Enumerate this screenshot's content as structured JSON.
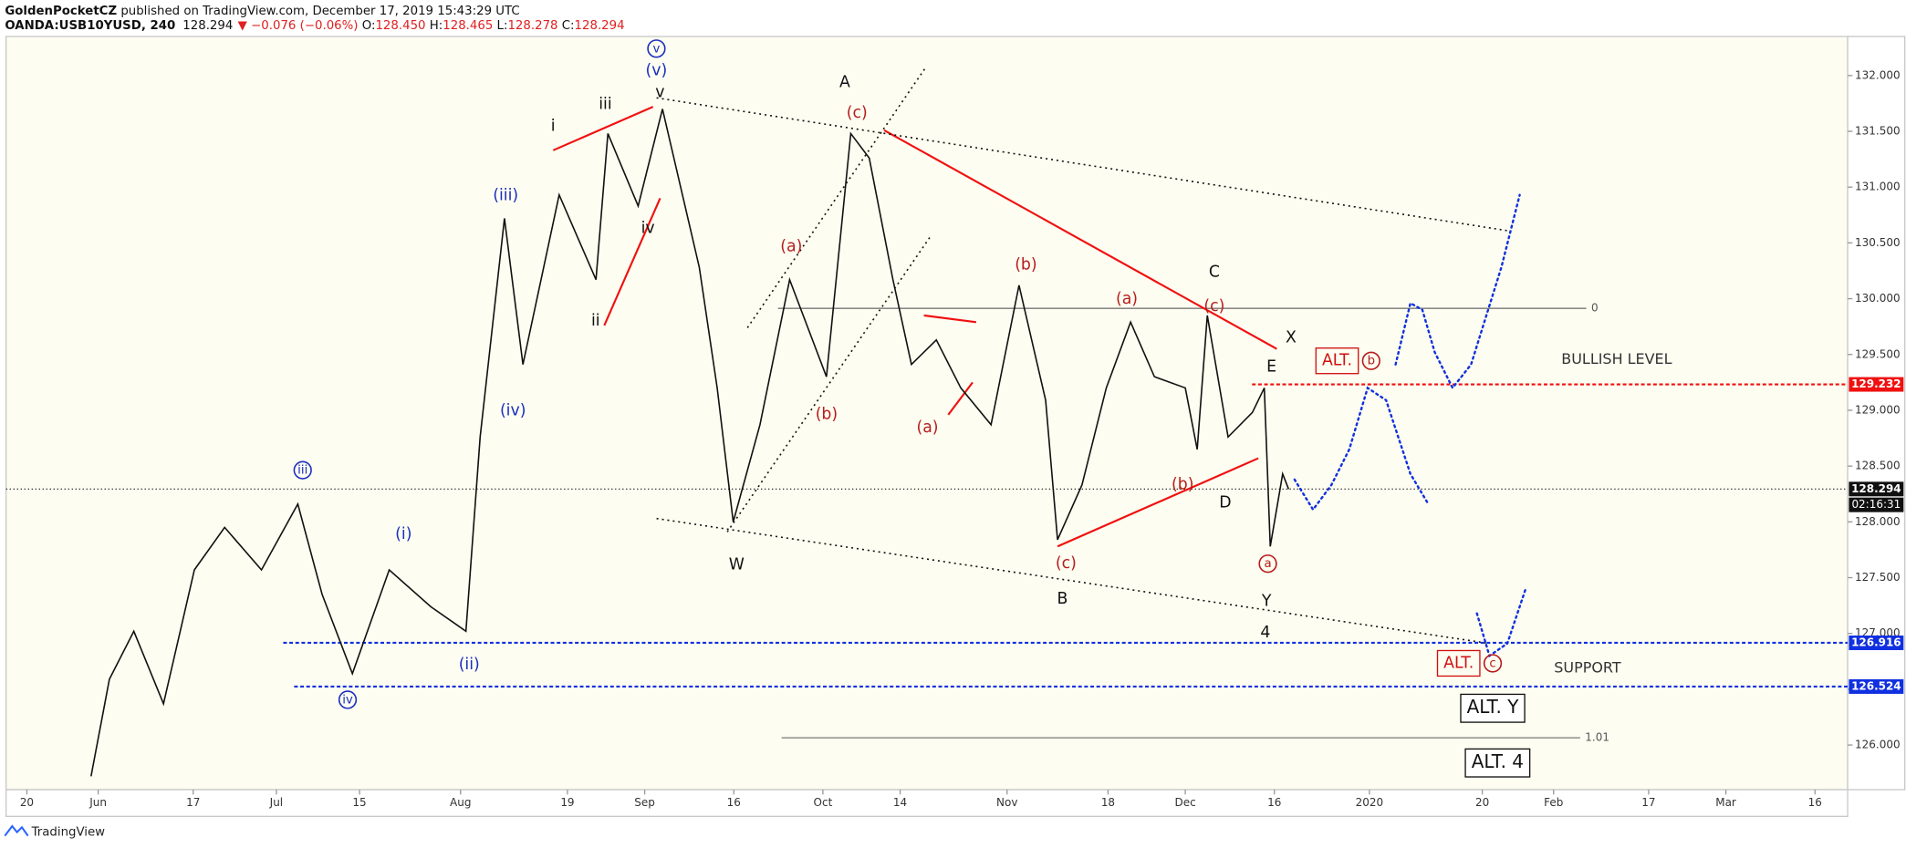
{
  "header": {
    "author": "GoldenPocketCZ",
    "published": " published on TradingView.com, December 17, 2019 15:43:29 UTC",
    "symbol": "OANDA:USB10YUSD, 240",
    "last": "128.294",
    "change": "▼ −0.076 (−0.06%)",
    "ohlc": [
      {
        "label": " O:",
        "value": "128.450"
      },
      {
        "label": " H:",
        "value": "128.465"
      },
      {
        "label": " L:",
        "value": "128.278"
      },
      {
        "label": " C:",
        "value": "128.294"
      }
    ]
  },
  "footer": "TradingView",
  "chart_data": {
    "type": "line",
    "color": "#111111",
    "xlim": [
      -3.5,
      306.5
    ],
    "ylim": [
      125.6,
      132.35
    ],
    "xticks": [
      {
        "value": 0,
        "label": "20"
      },
      {
        "value": 12,
        "label": "Jun"
      },
      {
        "value": 28,
        "label": "17"
      },
      {
        "value": 42,
        "label": "Jul"
      },
      {
        "value": 56,
        "label": "15"
      },
      {
        "value": 73,
        "label": "Aug"
      },
      {
        "value": 91,
        "label": "19"
      },
      {
        "value": 104,
        "label": "Sep"
      },
      {
        "value": 119,
        "label": "16"
      },
      {
        "value": 134,
        "label": "Oct"
      },
      {
        "value": 147,
        "label": "14"
      },
      {
        "value": 165,
        "label": "Nov"
      },
      {
        "value": 182,
        "label": "18"
      },
      {
        "value": 195,
        "label": "Dec"
      },
      {
        "value": 210,
        "label": "16"
      },
      {
        "value": 226,
        "label": "2020"
      },
      {
        "value": 245,
        "label": "20"
      },
      {
        "value": 257,
        "label": "Feb"
      },
      {
        "value": 273,
        "label": "17"
      },
      {
        "value": 286,
        "label": "Mar"
      },
      {
        "value": 301,
        "label": "16"
      }
    ],
    "yticks": [
      {
        "value": 126,
        "label": "126.000"
      },
      {
        "value": 126.5,
        "label": "126.500"
      },
      {
        "value": 127,
        "label": "127.000"
      },
      {
        "value": 127.5,
        "label": "127.500"
      },
      {
        "value": 128,
        "label": "128.000"
      },
      {
        "value": 128.5,
        "label": "128.500"
      },
      {
        "value": 129,
        "label": "129.000"
      },
      {
        "value": 129.5,
        "label": "129.500"
      },
      {
        "value": 130,
        "label": "130.000"
      },
      {
        "value": 130.5,
        "label": "130.500"
      },
      {
        "value": 131,
        "label": "131.000"
      },
      {
        "value": 131.5,
        "label": "131.500"
      },
      {
        "value": 132,
        "label": "132.000"
      }
    ],
    "x": [
      10.8,
      13.9,
      18,
      23,
      28.2,
      33.3,
      39.5,
      45.6,
      49.7,
      54.8,
      61,
      68,
      73.9,
      76.3,
      80.4,
      83.5,
      89.6,
      95.8,
      97.8,
      102.9,
      107,
      113.2,
      116.2,
      118.9,
      123.4,
      128.4,
      134.6,
      138.7,
      141.8,
      145.8,
      148.9,
      153.1,
      157.2,
      162.3,
      167,
      171.5,
      173.5,
      177.6,
      181.7,
      185.8,
      189.8,
      195,
      197,
      198.7,
      202.2,
      206.3,
      208.3,
      209.3,
      211.4,
      212.4
    ],
    "values": [
      125.72,
      126.59,
      127.02,
      126.37,
      127.57,
      127.95,
      127.57,
      128.16,
      127.35,
      126.64,
      127.57,
      127.24,
      127.02,
      128.76,
      130.72,
      129.41,
      130.93,
      130.17,
      131.48,
      130.83,
      131.7,
      130.28,
      129.2,
      128,
      128.87,
      130.17,
      129.3,
      131.48,
      131.26,
      130.17,
      129.41,
      129.63,
      129.2,
      128.87,
      130.12,
      129.09,
      127.84,
      128.33,
      129.2,
      129.79,
      129.3,
      129.2,
      128.65,
      129.85,
      128.76,
      128.98,
      129.2,
      127.78,
      128.43,
      128.294
    ],
    "levels": [
      {
        "value": 129.232,
        "label": "129.232",
        "color": "#f01010"
      },
      {
        "value": 128.294,
        "label": "128.294",
        "color": "#111111"
      },
      {
        "value": 126.916,
        "label": "126.916",
        "color": "#1030e0"
      },
      {
        "value": 126.524,
        "label": "126.524",
        "color": "#1030e0"
      }
    ],
    "countdown": "02:16:31",
    "fib": [
      {
        "value": 129.913,
        "label": "0"
      },
      {
        "value": 126.065,
        "label": "1.01"
      }
    ],
    "trendlines": [
      {
        "from": [
          88.6,
          131.33
        ],
        "to": [
          105.4,
          131.72
        ],
        "color": "#f01010"
      },
      {
        "from": [
          97.2,
          129.76
        ],
        "to": [
          106.6,
          130.9
        ],
        "color": "#f01010"
      },
      {
        "from": [
          144.3,
          131.51
        ],
        "to": [
          210.4,
          129.55
        ],
        "color": "#f01010"
      },
      {
        "from": [
          151,
          129.85
        ],
        "to": [
          159.8,
          129.79
        ],
        "color": "#f01010"
      },
      {
        "from": [
          155.1,
          128.96
        ],
        "to": [
          159.2,
          129.25
        ],
        "color": "#f01010"
      },
      {
        "from": [
          173.5,
          127.78
        ],
        "to": [
          207.3,
          128.57
        ],
        "color": "#f01010"
      },
      {
        "from": [
          106,
          131.8
        ],
        "to": [
          249.2,
          130.61
        ],
        "color": "#111111",
        "dotted": true
      },
      {
        "from": [
          106,
          128.03
        ],
        "to": [
          246.2,
          126.91
        ],
        "color": "#111111",
        "dotted": true
      },
      {
        "from": [
          117.9,
          127.91
        ],
        "to": [
          152,
          130.55
        ],
        "color": "#111111",
        "dotted": true
      },
      {
        "from": [
          121.3,
          129.74
        ],
        "to": [
          151.4,
          132.08
        ],
        "color": "#111111",
        "dotted": true
      }
    ],
    "projections": [
      {
        "color": "#1030e0",
        "x": [
          213.4,
          216.5,
          219.6,
          222.6,
          225.7,
          228.8,
          232.9,
          235.9
        ],
        "values": [
          128.38,
          128.11,
          128.33,
          128.65,
          129.2,
          129.09,
          128.43,
          128.16
        ]
      },
      {
        "color": "#1030e0",
        "x": [
          230.4,
          232.9,
          234.9,
          237,
          240,
          243.1,
          248.2,
          251.3
        ],
        "values": [
          129.41,
          129.96,
          129.9,
          129.52,
          129.2,
          129.41,
          130.28,
          130.93
        ]
      },
      {
        "color": "#1030e0",
        "x": [
          244.1,
          246.2,
          249.2,
          252.3
        ],
        "values": [
          127.18,
          126.8,
          126.91,
          127.4
        ]
      }
    ],
    "annotations": [
      {
        "text": "i",
        "color": "#111111"
      },
      {
        "text": "iii",
        "color": "#111111"
      },
      {
        "text": "v",
        "color": "#111111"
      },
      {
        "text": "ii",
        "color": "#111111"
      },
      {
        "text": "iv",
        "color": "#111111"
      },
      {
        "text": "A",
        "color": "#111111"
      },
      {
        "text": "W",
        "color": "#111111"
      },
      {
        "text": "B",
        "color": "#111111"
      },
      {
        "text": "C",
        "color": "#111111"
      },
      {
        "text": "X",
        "color": "#111111"
      },
      {
        "text": "E",
        "color": "#111111"
      },
      {
        "text": "D",
        "color": "#111111"
      },
      {
        "text": "Y",
        "color": "#111111"
      },
      {
        "text": "4",
        "color": "#111111"
      },
      {
        "text": "(c)",
        "color": "#b71c1c"
      },
      {
        "text": "(a)",
        "color": "#b71c1c"
      },
      {
        "text": "(b)",
        "color": "#b71c1c"
      },
      {
        "text": "(b)",
        "color": "#b71c1c"
      },
      {
        "text": "(a)",
        "color": "#b71c1c"
      },
      {
        "text": "(a)",
        "color": "#b71c1c"
      },
      {
        "text": "(c)",
        "color": "#b71c1c"
      },
      {
        "text": "(b)",
        "color": "#b71c1c"
      },
      {
        "text": "(c)",
        "color": "#b71c1c"
      },
      {
        "text": "a",
        "color": "#b71c1c",
        "circled": true
      },
      {
        "text": "v",
        "color": "#1a2fbf",
        "circled": true
      },
      {
        "text": "(v)",
        "color": "#1a2fbf"
      },
      {
        "text": "(iii)",
        "color": "#1a2fbf"
      },
      {
        "text": "(iv)",
        "color": "#1a2fbf"
      },
      {
        "text": "iii",
        "color": "#1a2fbf",
        "circled": true
      },
      {
        "text": "(i)",
        "color": "#1a2fbf"
      },
      {
        "text": "(ii)",
        "color": "#1a2fbf"
      },
      {
        "text": "iv",
        "color": "#1a2fbf",
        "circled": true
      },
      {
        "text": "BULLISH LEVEL",
        "color": "#333333"
      },
      {
        "text": "SUPPORT",
        "color": "#333333"
      },
      {
        "text": "ALT.",
        "color": "#d01010",
        "box": true
      },
      {
        "text": "b",
        "color": "#b71c1c",
        "circled": true
      },
      {
        "text": "ALT.",
        "color": "#d01010",
        "box": true
      },
      {
        "text": "c",
        "color": "#b71c1c",
        "circled": true
      },
      {
        "text": "ALT. Y",
        "color": "#111111",
        "box": true
      },
      {
        "text": "ALT. 4",
        "color": "#111111",
        "box": true
      }
    ]
  }
}
